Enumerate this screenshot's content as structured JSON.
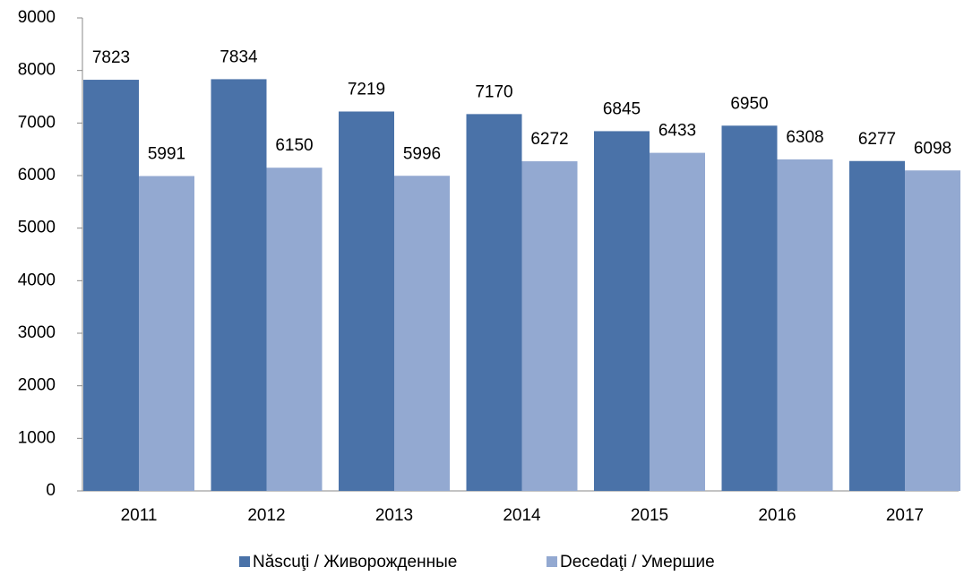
{
  "chart_data": {
    "type": "bar",
    "categories": [
      "2011",
      "2012",
      "2013",
      "2014",
      "2015",
      "2016",
      "2017"
    ],
    "series": [
      {
        "name": "Născuţi / Живорожденные",
        "color": "#4a72a8",
        "values": [
          7823,
          7834,
          7219,
          7170,
          6845,
          6950,
          6277
        ]
      },
      {
        "name": "Decedaţi / Умершие",
        "color": "#93a9d1",
        "values": [
          5991,
          6150,
          5996,
          6272,
          6433,
          6308,
          6098
        ]
      }
    ],
    "ylim": [
      0,
      9000
    ],
    "yticks": [
      0,
      1000,
      2000,
      3000,
      4000,
      5000,
      6000,
      7000,
      8000,
      9000
    ],
    "grid": false,
    "legend": "bottom"
  }
}
